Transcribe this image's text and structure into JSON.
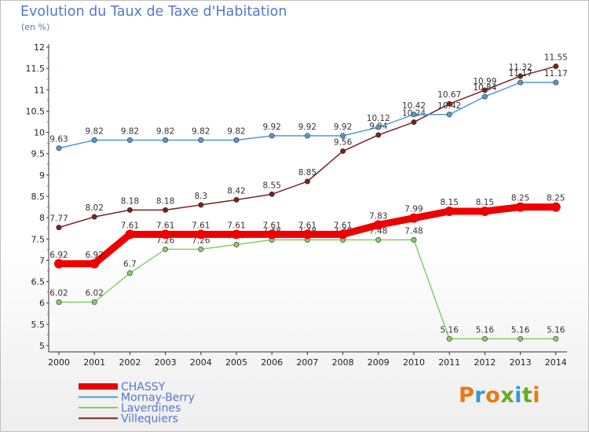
{
  "header": {
    "title": "Evolution du Taux de Taxe d'Habitation",
    "subtitle": "(en %)"
  },
  "logo": {
    "text": "Proxiti",
    "colors": [
      "#ee7711",
      "#3399dd",
      "#ee7711",
      "#66aa22",
      "#3399dd",
      "#66aa22",
      "#ee7711"
    ]
  },
  "chart_data": {
    "type": "line",
    "title": "Evolution du Taux de Taxe d'Habitation",
    "ylabel": "(en %)",
    "xlabel": "",
    "x": [
      "2000",
      "2001",
      "2002",
      "2003",
      "2004",
      "2005",
      "2006",
      "2007",
      "2008",
      "2009",
      "2010",
      "2011",
      "2012",
      "2013",
      "2014"
    ],
    "ylim": [
      5,
      12
    ],
    "yticks": [
      "5",
      "5.5",
      "6",
      "6.5",
      "7",
      "7.5",
      "8",
      "8.5",
      "9",
      "9.5",
      "10",
      "10.5",
      "11",
      "11.5",
      "12"
    ],
    "grid": false,
    "legend_position": "bottom-left",
    "series": [
      {
        "name": "Villequiers",
        "color": "#7a2020",
        "values": [
          7.77,
          8.02,
          8.18,
          8.18,
          8.3,
          8.42,
          8.55,
          8.85,
          9.56,
          9.94,
          10.24,
          10.67,
          10.99,
          11.32,
          11.55
        ],
        "labels": [
          "7.77",
          "8.02",
          "8.18",
          "8.18",
          "8.3",
          "8.42",
          "8.55",
          "8.85",
          "9.56",
          "9.94",
          "10.24",
          "10.67",
          "10.99",
          "11.32",
          "11.55"
        ]
      },
      {
        "name": "Mornay-Berry",
        "color": "#5599cc",
        "values": [
          9.63,
          9.82,
          9.82,
          9.82,
          9.82,
          9.82,
          9.92,
          9.92,
          9.92,
          10.12,
          10.42,
          10.42,
          10.84,
          11.17,
          11.17
        ],
        "labels": [
          "9.63",
          "9.82",
          "9.82",
          "9.82",
          "9.82",
          "9.82",
          "9.92",
          "9.92",
          "9.92",
          "10.12",
          "10.42",
          "10.42",
          "10.84",
          "11.17",
          "11.17"
        ]
      },
      {
        "name": "Laverdines",
        "color": "#88cc66",
        "values": [
          6.02,
          6.02,
          6.7,
          7.26,
          7.26,
          7.37,
          7.48,
          7.48,
          7.48,
          7.48,
          7.48,
          5.16,
          5.16,
          5.16,
          5.16
        ],
        "labels": [
          "6.02",
          "6.02",
          "6.7",
          "7.26",
          "7.26",
          "7.37",
          "7.48",
          "7.48",
          "7.48",
          "7.48",
          "7.48",
          "5.16",
          "5.16",
          "5.16",
          "5.16"
        ]
      },
      {
        "name": "CHASSY",
        "color": "#ee0000",
        "values": [
          6.92,
          6.92,
          7.61,
          7.61,
          7.61,
          7.61,
          7.61,
          7.61,
          7.61,
          7.83,
          7.99,
          8.15,
          8.15,
          8.25,
          8.25
        ],
        "labels": [
          "6.92",
          "6.92",
          "7.61",
          "7.61",
          "7.61",
          "7.61",
          "7.61",
          "7.61",
          "7.61",
          "7.83",
          "7.99",
          "8.15",
          "8.15",
          "8.25",
          "8.25"
        ]
      }
    ],
    "legend": [
      "CHASSY",
      "Mornay-Berry",
      "Laverdines",
      "Villequiers"
    ]
  }
}
